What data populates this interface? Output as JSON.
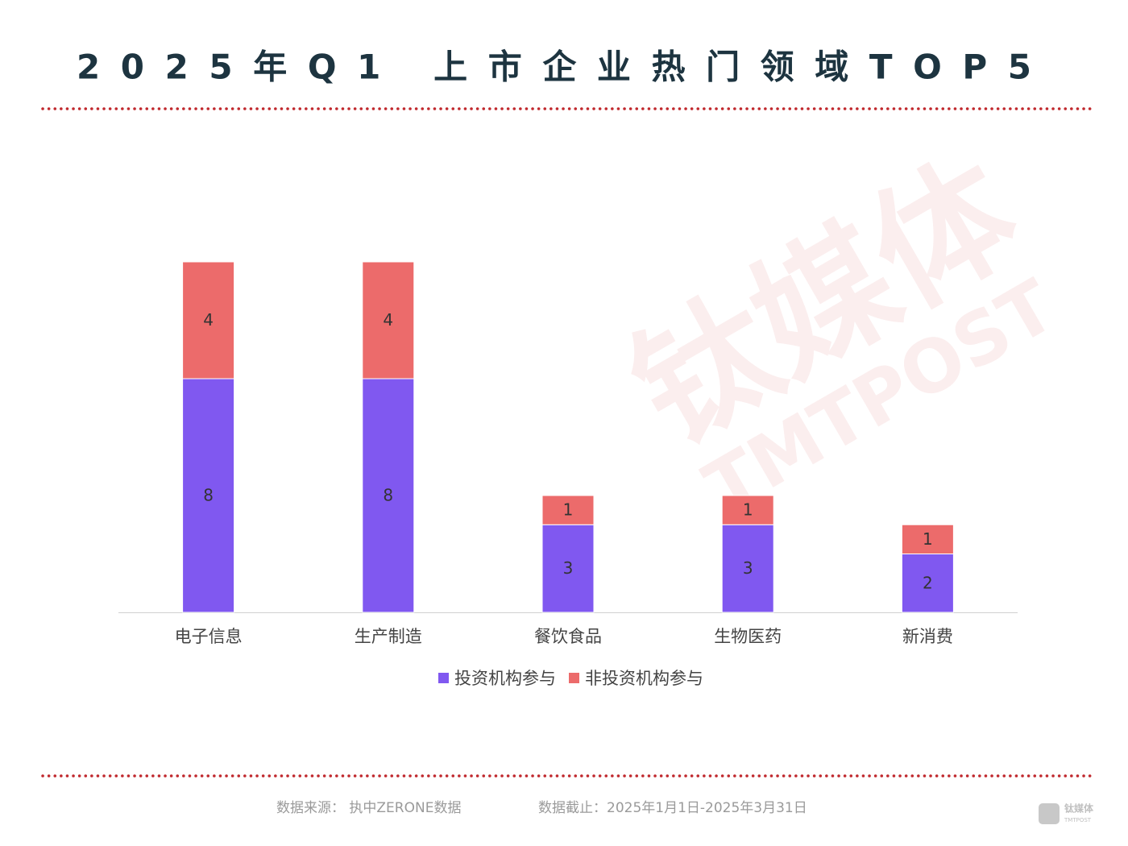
{
  "chart_data": {
    "type": "stacked_bar",
    "title": "2025年Q1 上市企业热门领域TOP5",
    "categories": [
      "电子信息",
      "生产制造",
      "餐饮食品",
      "生物医药",
      "新消费"
    ],
    "series": [
      {
        "name": "投资机构参与",
        "color": "#8058f0",
        "values": [
          8,
          8,
          3,
          3,
          2
        ]
      },
      {
        "name": "非投资机构参与",
        "color": "#ec6b6b",
        "values": [
          4,
          4,
          1,
          1,
          1
        ]
      }
    ],
    "ylim": [
      0,
      12
    ],
    "legend": "bottom",
    "source": "数据来源：  执中ZERONE数据",
    "cutoff": "数据截止：2025年1月1日-2025年3月31日",
    "brand": "钛媒体",
    "brand_en": "TMTPOST"
  }
}
